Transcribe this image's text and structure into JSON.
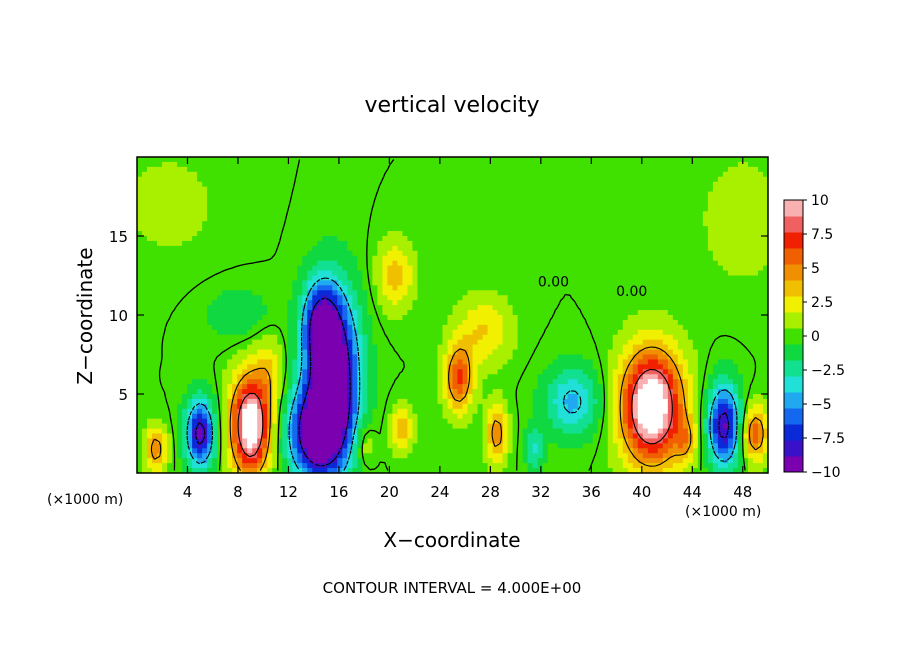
{
  "chart_data": {
    "type": "heatmap",
    "title": "vertical velocity",
    "xlabel": "X−coordinate",
    "ylabel": "Z−coordinate",
    "x_unit_left": "(×1000 m)",
    "x_unit_right": "(×1000 m)",
    "xlim": [
      0,
      50
    ],
    "ylim": [
      0,
      20
    ],
    "x_ticks": [
      4,
      8,
      12,
      16,
      20,
      24,
      28,
      32,
      36,
      40,
      44,
      48
    ],
    "y_ticks": [
      5,
      10,
      15
    ],
    "x_tick_labels": [
      "4",
      "8",
      "12",
      "16",
      "20",
      "24",
      "28",
      "32",
      "36",
      "40",
      "44",
      "48"
    ],
    "y_tick_labels": [
      "5",
      "10",
      "15"
    ],
    "contour_interval_text": "CONTOUR INTERVAL = 4.000E+00",
    "contour_labels": [
      {
        "text": "0.00",
        "x": 33.0,
        "y": 11.8
      },
      {
        "text": "0.00",
        "x": 39.2,
        "y": 11.2
      }
    ],
    "colorbar": {
      "range": [
        -10,
        10
      ],
      "tick_labels": [
        "10",
        "7.5",
        "5",
        "2.5",
        "0",
        "−2.5",
        "−5",
        "−7.5",
        "−10"
      ],
      "tick_values": [
        10,
        7.5,
        5,
        2.5,
        0,
        -2.5,
        -5,
        -7.5,
        -10
      ],
      "colors": [
        "#7a00b0",
        "#3a10c8",
        "#0a2ad8",
        "#1468f0",
        "#20a8f0",
        "#20e0d8",
        "#10e090",
        "#10d840",
        "#40e000",
        "#a8f000",
        "#f0f000",
        "#f0c000",
        "#f09000",
        "#f06000",
        "#f02000",
        "#f06060",
        "#f8b0b0"
      ]
    },
    "features": [
      {
        "x": 9.0,
        "y": 3.0,
        "sx": 1.1,
        "sy": 2.2,
        "amp": 12.0
      },
      {
        "x": 40.8,
        "y": 4.2,
        "sx": 1.7,
        "sy": 2.5,
        "amp": 12.5
      },
      {
        "x": 15.5,
        "y": 6.0,
        "sx": 1.4,
        "sy": 3.6,
        "amp": -12.5
      },
      {
        "x": 14.0,
        "y": 2.5,
        "sx": 1.5,
        "sy": 2.0,
        "amp": -9.0
      },
      {
        "x": 14.5,
        "y": 9.5,
        "sx": 1.0,
        "sy": 1.8,
        "amp": -6.0
      },
      {
        "x": 5.0,
        "y": 2.5,
        "sx": 0.8,
        "sy": 1.5,
        "amp": -9.0
      },
      {
        "x": 46.5,
        "y": 3.0,
        "sx": 0.9,
        "sy": 1.8,
        "amp": -9.0
      },
      {
        "x": 34.5,
        "y": 4.5,
        "sx": 1.5,
        "sy": 1.5,
        "amp": -4.5
      },
      {
        "x": 25.5,
        "y": 6.0,
        "sx": 0.8,
        "sy": 1.5,
        "amp": 6.5
      },
      {
        "x": 28.5,
        "y": 2.5,
        "sx": 0.6,
        "sy": 1.3,
        "amp": 5.0
      },
      {
        "x": 21.0,
        "y": 2.8,
        "sx": 0.6,
        "sy": 1.0,
        "amp": 4.0
      },
      {
        "x": 1.5,
        "y": 1.5,
        "sx": 0.6,
        "sy": 1.0,
        "amp": 5.0
      },
      {
        "x": 49.0,
        "y": 2.5,
        "sx": 0.7,
        "sy": 1.2,
        "amp": 6.0
      },
      {
        "x": 20.5,
        "y": 12.5,
        "sx": 1.0,
        "sy": 1.5,
        "amp": 3.5
      },
      {
        "x": 27.5,
        "y": 9.0,
        "sx": 1.5,
        "sy": 1.5,
        "amp": 3.0
      },
      {
        "x": 8.0,
        "y": 10.0,
        "sx": 1.8,
        "sy": 1.2,
        "amp": -1.5
      },
      {
        "x": 31.5,
        "y": 1.5,
        "sx": 0.5,
        "sy": 1.0,
        "amp": -3.0
      },
      {
        "x": 43.5,
        "y": 2.0,
        "sx": 0.6,
        "sy": 1.0,
        "amp": 3.0
      },
      {
        "x": 10.5,
        "y": 6.5,
        "sx": 0.8,
        "sy": 1.5,
        "amp": 2.5
      },
      {
        "x": 18.0,
        "y": 1.8,
        "sx": 0.6,
        "sy": 1.0,
        "amp": 2.0
      },
      {
        "x": 2.5,
        "y": 17.0,
        "sx": 3.0,
        "sy": 2.5,
        "amp": 1.0
      },
      {
        "x": 48.0,
        "y": 16.0,
        "sx": 2.5,
        "sy": 3.0,
        "amp": 1.2
      }
    ]
  }
}
